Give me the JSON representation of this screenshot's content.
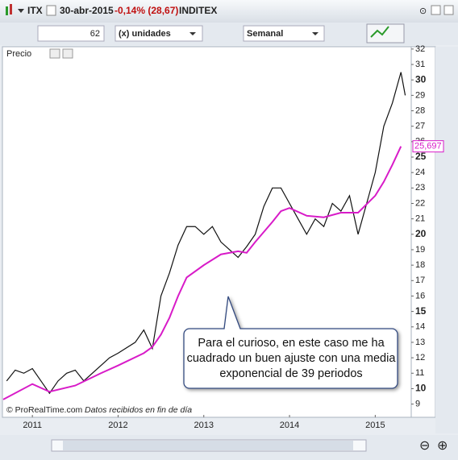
{
  "header": {
    "symbol": "ITX",
    "date": "30-abr-2015",
    "change": "-0,14% (28,67)",
    "name": "INDITEX"
  },
  "toolbar": {
    "count": "62",
    "units": "(x) unidades",
    "period": "Semanal"
  },
  "panel_label": "Precio",
  "footer": {
    "copyright": "© ProRealTime.com",
    "note": "Datos recibidos en fin de día"
  },
  "chart_data": {
    "type": "line",
    "annotation": "Para el curioso, en este caso me ha cuadrado un buen ajuste con una media exponencial de 39 periodos",
    "xlim": [
      2010.66,
      2015.42
    ],
    "xticks": [
      2011,
      2012,
      2013,
      2014,
      2015
    ],
    "ylim": [
      8.3,
      32.15
    ],
    "yticks": [
      9,
      10,
      11,
      12,
      13,
      14,
      15,
      16,
      17,
      18,
      19,
      20,
      21,
      22,
      23,
      24,
      25,
      26,
      27,
      28,
      29,
      30,
      31,
      32
    ],
    "series": [
      {
        "color": "#111111",
        "x": [
          2010.7,
          2010.8,
          2010.9,
          2011.0,
          2011.1,
          2011.2,
          2011.3,
          2011.4,
          2011.5,
          2011.6,
          2011.8,
          2011.9,
          2012.0,
          2012.2,
          2012.3,
          2012.4,
          2012.5,
          2012.6,
          2012.7,
          2012.8,
          2012.9,
          2013.0,
          2013.1,
          2013.2,
          2013.3,
          2013.4,
          2013.5,
          2013.6,
          2013.7,
          2013.8,
          2013.9,
          2014.0,
          2014.1,
          2014.2,
          2014.3,
          2014.4,
          2014.5,
          2014.6,
          2014.7,
          2014.8,
          2014.9,
          2015.0,
          2015.1,
          2015.2,
          2015.3,
          2015.35
        ],
        "values": [
          10.5,
          11.2,
          11.0,
          11.3,
          10.5,
          9.7,
          10.5,
          11.0,
          11.2,
          10.5,
          11.5,
          12.0,
          12.3,
          13.0,
          13.8,
          12.6,
          16.0,
          17.5,
          19.3,
          20.5,
          20.5,
          20.0,
          20.5,
          19.5,
          19.0,
          18.5,
          19.2,
          20.0,
          21.8,
          23.0,
          23.0,
          22.0,
          21.0,
          20.0,
          21.0,
          20.5,
          22.0,
          21.5,
          22.5,
          20.0,
          22.0,
          24.0,
          27.0,
          28.5,
          30.5,
          29.0
        ]
      },
      {
        "color": "#d81bc8",
        "x": [
          2010.66,
          2011.0,
          2011.2,
          2011.5,
          2011.8,
          2012.0,
          2012.3,
          2012.4,
          2012.5,
          2012.6,
          2012.7,
          2012.8,
          2013.0,
          2013.2,
          2013.4,
          2013.5,
          2013.6,
          2013.8,
          2013.9,
          2014.0,
          2014.2,
          2014.4,
          2014.6,
          2014.8,
          2015.0,
          2015.1,
          2015.2,
          2015.3
        ],
        "values": [
          9.3,
          10.3,
          9.8,
          10.2,
          11.0,
          11.5,
          12.3,
          12.7,
          13.5,
          14.6,
          16.0,
          17.2,
          18.0,
          18.7,
          18.9,
          18.8,
          19.5,
          20.8,
          21.5,
          21.7,
          21.2,
          21.1,
          21.4,
          21.4,
          22.5,
          23.4,
          24.5,
          25.697
        ],
        "value_labels": [
          null,
          null,
          null,
          null,
          null,
          null,
          null,
          null,
          null,
          null,
          null,
          null,
          null,
          null,
          null,
          null,
          null,
          null,
          null,
          null,
          null,
          null,
          null,
          null,
          null,
          null,
          null,
          "25,697"
        ]
      }
    ]
  }
}
